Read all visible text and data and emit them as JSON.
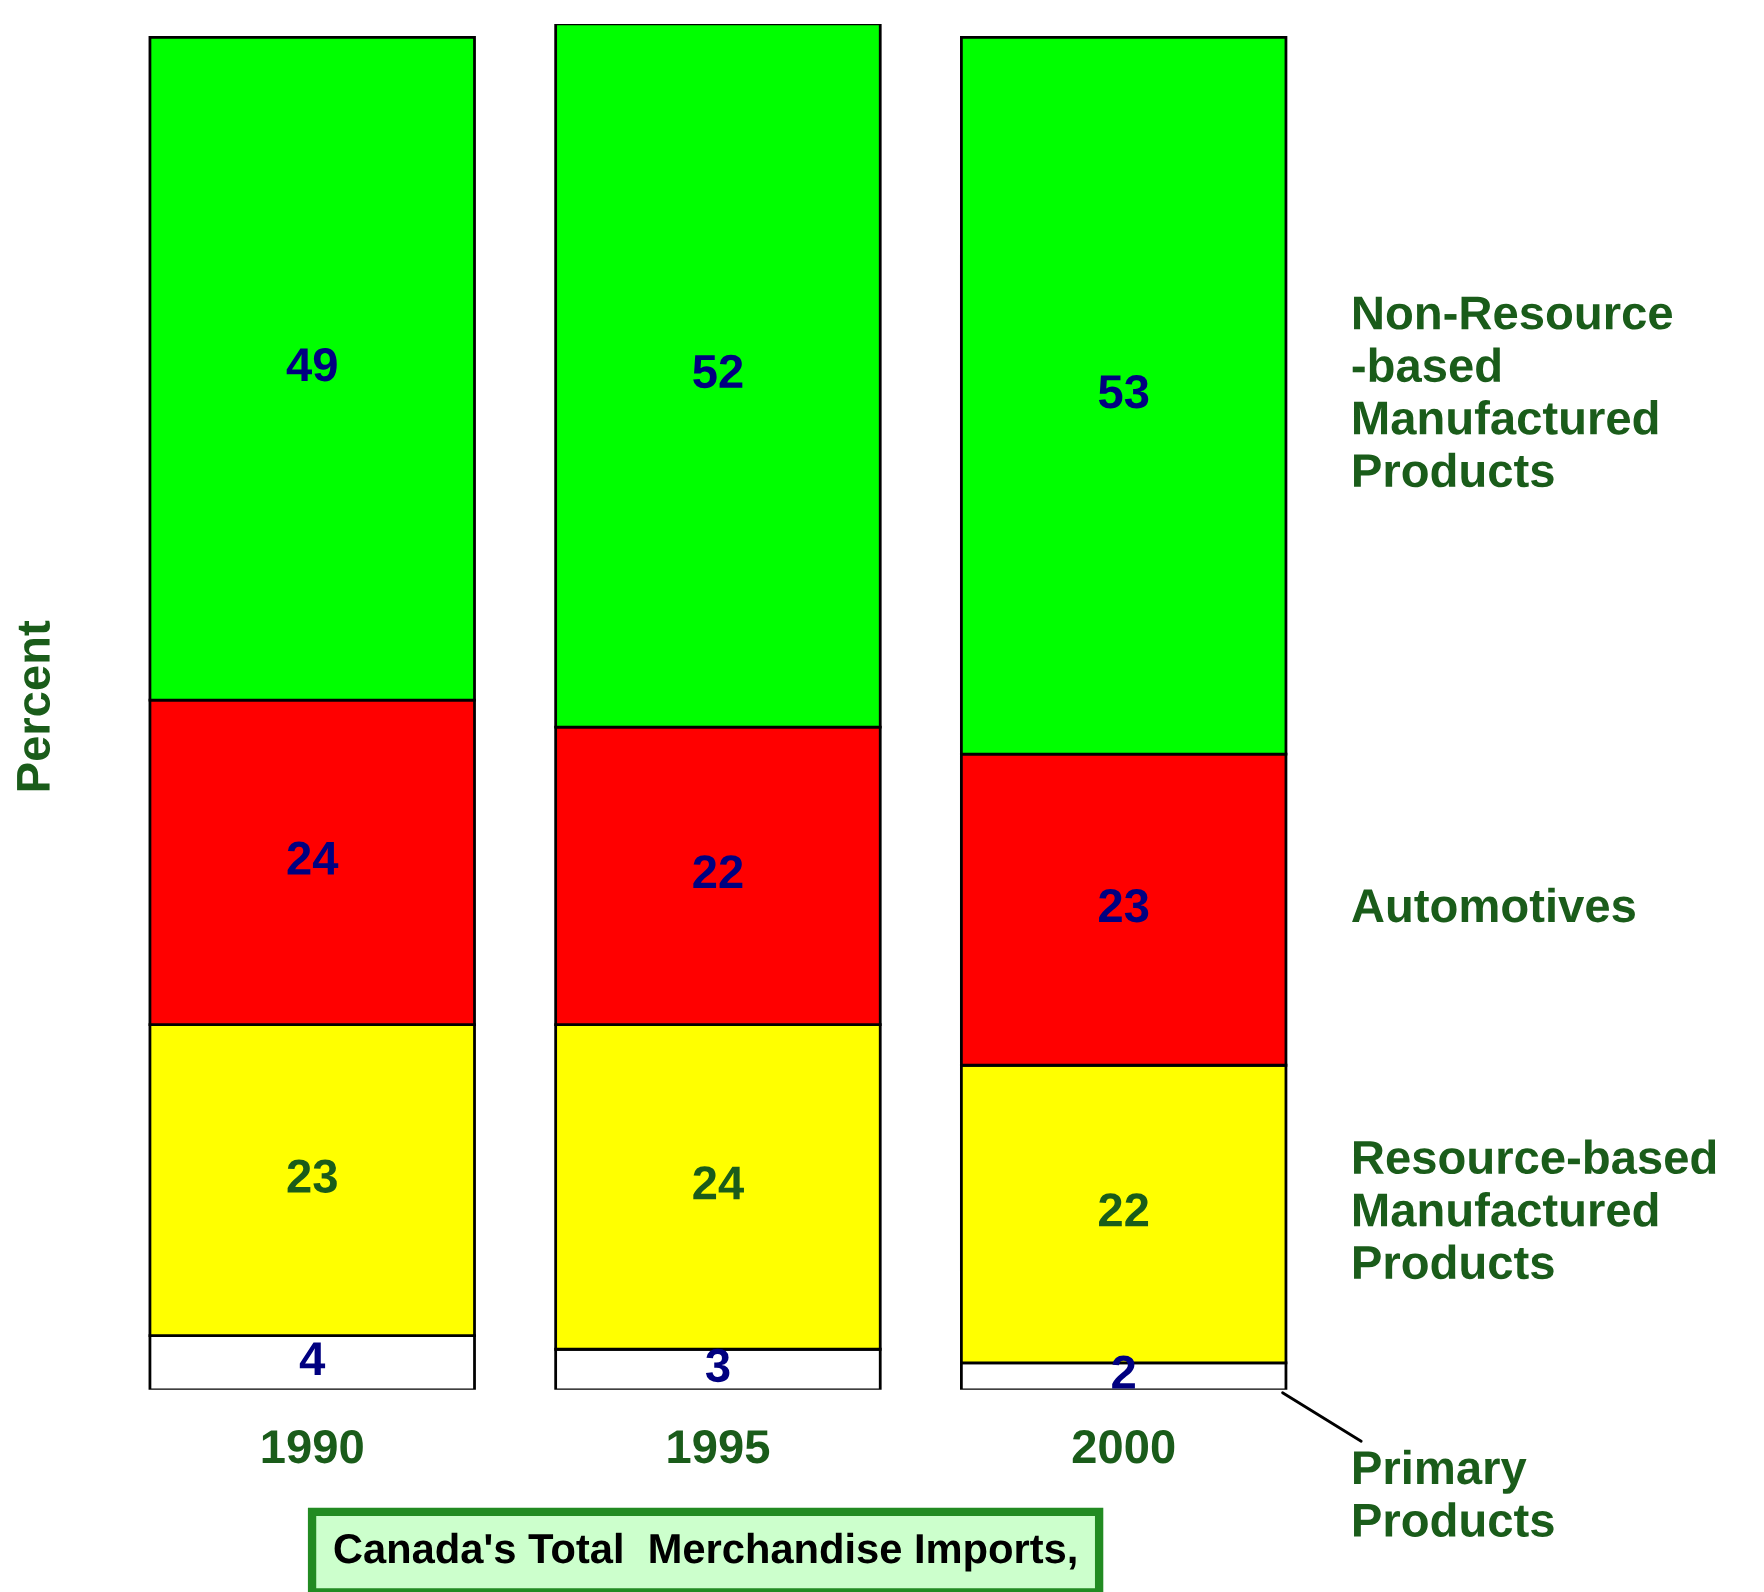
{
  "chart_data": {
    "type": "bar",
    "stacked": true,
    "ylabel": "Percent",
    "title": "Canada's Total  Merchandise Imports,",
    "categories": [
      "1990",
      "1995",
      "2000"
    ],
    "series": [
      {
        "name": "Primary Products",
        "color": "#ffffff",
        "values": [
          4,
          3,
          2
        ]
      },
      {
        "name": "Resource-based Manufactured Products",
        "color": "#ffff00",
        "values": [
          23,
          24,
          22
        ]
      },
      {
        "name": "Automotives",
        "color": "#ff0000",
        "values": [
          24,
          22,
          23
        ]
      },
      {
        "name": "Non-Resource -based Manufactured Products",
        "color": "#00ff00",
        "values": [
          49,
          52,
          53
        ]
      }
    ],
    "data_labels": true,
    "legend": "right",
    "grid": false
  }
}
